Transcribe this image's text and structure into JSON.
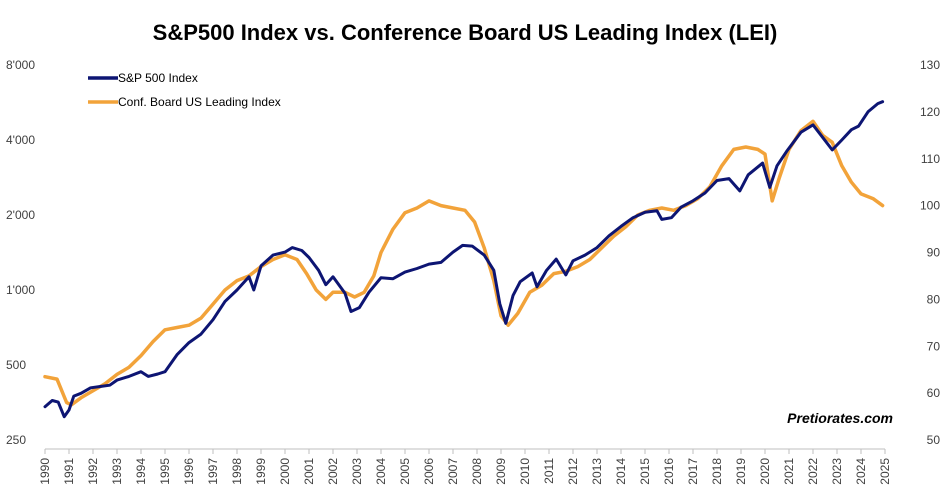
{
  "chart_data": {
    "type": "line",
    "title": "S&P500 Index vs. Conference Board US Leading Index (LEI)",
    "xlabel": "",
    "ylabel": "",
    "x_range": [
      1990,
      2025
    ],
    "x_ticks": [
      "1990",
      "1991",
      "1992",
      "1993",
      "1994",
      "1995",
      "1996",
      "1997",
      "1998",
      "1999",
      "2000",
      "2001",
      "2002",
      "2003",
      "2004",
      "2005",
      "2006",
      "2007",
      "2008",
      "2009",
      "2010",
      "2011",
      "2012",
      "2013",
      "2014",
      "2015",
      "2016",
      "2017",
      "2018",
      "2019",
      "2020",
      "2021",
      "2022",
      "2023",
      "2024",
      "2025"
    ],
    "y_left": {
      "scale": "log",
      "range": [
        250,
        8000
      ],
      "ticks": [
        250,
        500,
        1000,
        2000,
        4000,
        8000
      ],
      "tick_labels": [
        "250",
        "500",
        "1'000",
        "2'000",
        "4'000",
        "8'000"
      ]
    },
    "y_right": {
      "scale": "linear",
      "range": [
        50,
        130
      ],
      "ticks": [
        50,
        60,
        70,
        80,
        90,
        100,
        110,
        120,
        130
      ],
      "tick_labels": [
        "50",
        "60",
        "70",
        "80",
        "90",
        "100",
        "110",
        "120",
        "130"
      ]
    },
    "grid": false,
    "legend_position": "top-left",
    "watermark": "Pretiorates.com",
    "series": [
      {
        "name": "S&P 500 Index",
        "axis": "left",
        "color": "#0d1573",
        "points": [
          [
            1990.0,
            340
          ],
          [
            1990.3,
            360
          ],
          [
            1990.55,
            355
          ],
          [
            1990.8,
            310
          ],
          [
            1991.0,
            330
          ],
          [
            1991.2,
            375
          ],
          [
            1991.5,
            385
          ],
          [
            1991.9,
            405
          ],
          [
            1992.3,
            410
          ],
          [
            1992.7,
            415
          ],
          [
            1993.0,
            435
          ],
          [
            1993.5,
            450
          ],
          [
            1994.0,
            470
          ],
          [
            1994.3,
            450
          ],
          [
            1994.7,
            460
          ],
          [
            1995.0,
            470
          ],
          [
            1995.5,
            550
          ],
          [
            1996.0,
            615
          ],
          [
            1996.5,
            665
          ],
          [
            1997.0,
            760
          ],
          [
            1997.5,
            900
          ],
          [
            1998.0,
            1000
          ],
          [
            1998.5,
            1130
          ],
          [
            1998.7,
            1000
          ],
          [
            1999.0,
            1250
          ],
          [
            1999.5,
            1380
          ],
          [
            2000.0,
            1420
          ],
          [
            2000.3,
            1480
          ],
          [
            2000.7,
            1440
          ],
          [
            2001.0,
            1350
          ],
          [
            2001.4,
            1200
          ],
          [
            2001.7,
            1050
          ],
          [
            2002.0,
            1130
          ],
          [
            2002.5,
            970
          ],
          [
            2002.75,
            820
          ],
          [
            2003.1,
            850
          ],
          [
            2003.5,
            980
          ],
          [
            2004.0,
            1120
          ],
          [
            2004.5,
            1110
          ],
          [
            2005.0,
            1180
          ],
          [
            2005.5,
            1220
          ],
          [
            2006.0,
            1270
          ],
          [
            2006.5,
            1290
          ],
          [
            2007.0,
            1420
          ],
          [
            2007.4,
            1510
          ],
          [
            2007.8,
            1500
          ],
          [
            2008.3,
            1380
          ],
          [
            2008.7,
            1200
          ],
          [
            2008.95,
            880
          ],
          [
            2009.2,
            735
          ],
          [
            2009.5,
            950
          ],
          [
            2009.8,
            1080
          ],
          [
            2010.3,
            1170
          ],
          [
            2010.5,
            1030
          ],
          [
            2010.9,
            1200
          ],
          [
            2011.3,
            1330
          ],
          [
            2011.7,
            1150
          ],
          [
            2012.0,
            1310
          ],
          [
            2012.5,
            1380
          ],
          [
            2013.0,
            1480
          ],
          [
            2013.5,
            1650
          ],
          [
            2014.0,
            1800
          ],
          [
            2014.5,
            1950
          ],
          [
            2015.0,
            2050
          ],
          [
            2015.5,
            2080
          ],
          [
            2015.7,
            1920
          ],
          [
            2016.1,
            1950
          ],
          [
            2016.5,
            2150
          ],
          [
            2017.0,
            2280
          ],
          [
            2017.5,
            2450
          ],
          [
            2018.0,
            2750
          ],
          [
            2018.5,
            2800
          ],
          [
            2018.95,
            2500
          ],
          [
            2019.3,
            2900
          ],
          [
            2019.9,
            3230
          ],
          [
            2020.2,
            2580
          ],
          [
            2020.5,
            3150
          ],
          [
            2020.9,
            3600
          ],
          [
            2021.5,
            4300
          ],
          [
            2022.0,
            4600
          ],
          [
            2022.4,
            4100
          ],
          [
            2022.8,
            3650
          ],
          [
            2023.2,
            4000
          ],
          [
            2023.6,
            4400
          ],
          [
            2023.9,
            4550
          ],
          [
            2024.3,
            5200
          ],
          [
            2024.7,
            5600
          ],
          [
            2024.9,
            5700
          ]
        ]
      },
      {
        "name": "Conf. Board US Leading Index",
        "axis": "right",
        "color": "#f2a33a",
        "points": [
          [
            1990.0,
            63.5
          ],
          [
            1990.5,
            63.0
          ],
          [
            1990.9,
            58.0
          ],
          [
            1991.1,
            57.5
          ],
          [
            1991.5,
            59.0
          ],
          [
            1992.0,
            60.5
          ],
          [
            1992.5,
            62.0
          ],
          [
            1993.0,
            64.0
          ],
          [
            1993.5,
            65.5
          ],
          [
            1994.0,
            68.0
          ],
          [
            1994.5,
            71.0
          ],
          [
            1995.0,
            73.5
          ],
          [
            1995.5,
            74.0
          ],
          [
            1996.0,
            74.5
          ],
          [
            1996.5,
            76.0
          ],
          [
            1997.0,
            79.0
          ],
          [
            1997.5,
            82.0
          ],
          [
            1998.0,
            84.0
          ],
          [
            1998.5,
            85.0
          ],
          [
            1999.0,
            87.0
          ],
          [
            1999.5,
            88.5
          ],
          [
            2000.0,
            89.5
          ],
          [
            2000.5,
            88.5
          ],
          [
            2000.9,
            85.5
          ],
          [
            2001.3,
            82.0
          ],
          [
            2001.7,
            80.0
          ],
          [
            2002.0,
            81.5
          ],
          [
            2002.5,
            81.5
          ],
          [
            2002.9,
            80.5
          ],
          [
            2003.3,
            81.5
          ],
          [
            2003.7,
            85.0
          ],
          [
            2004.0,
            90.0
          ],
          [
            2004.5,
            95.0
          ],
          [
            2005.0,
            98.5
          ],
          [
            2005.5,
            99.5
          ],
          [
            2006.0,
            101.0
          ],
          [
            2006.5,
            100.0
          ],
          [
            2007.0,
            99.5
          ],
          [
            2007.5,
            99.0
          ],
          [
            2007.9,
            96.5
          ],
          [
            2008.3,
            91.0
          ],
          [
            2008.7,
            84.0
          ],
          [
            2009.0,
            76.5
          ],
          [
            2009.3,
            74.5
          ],
          [
            2009.7,
            77.0
          ],
          [
            2010.2,
            81.5
          ],
          [
            2010.7,
            83.0
          ],
          [
            2011.2,
            85.5
          ],
          [
            2011.7,
            86.0
          ],
          [
            2012.2,
            87.0
          ],
          [
            2012.7,
            88.5
          ],
          [
            2013.2,
            91.0
          ],
          [
            2013.7,
            93.5
          ],
          [
            2014.2,
            95.5
          ],
          [
            2014.7,
            98.0
          ],
          [
            2015.2,
            99.0
          ],
          [
            2015.7,
            99.5
          ],
          [
            2016.2,
            99.0
          ],
          [
            2016.7,
            100.0
          ],
          [
            2017.2,
            101.5
          ],
          [
            2017.7,
            104.0
          ],
          [
            2018.2,
            108.5
          ],
          [
            2018.7,
            112.0
          ],
          [
            2019.2,
            112.5
          ],
          [
            2019.7,
            112.0
          ],
          [
            2020.0,
            111.0
          ],
          [
            2020.3,
            101.0
          ],
          [
            2020.6,
            106.0
          ],
          [
            2021.0,
            112.0
          ],
          [
            2021.5,
            116.0
          ],
          [
            2022.0,
            118.0
          ],
          [
            2022.4,
            115.0
          ],
          [
            2022.8,
            113.5
          ],
          [
            2023.2,
            108.5
          ],
          [
            2023.6,
            105.0
          ],
          [
            2024.0,
            102.5
          ],
          [
            2024.5,
            101.5
          ],
          [
            2024.9,
            100.0
          ]
        ]
      }
    ]
  }
}
